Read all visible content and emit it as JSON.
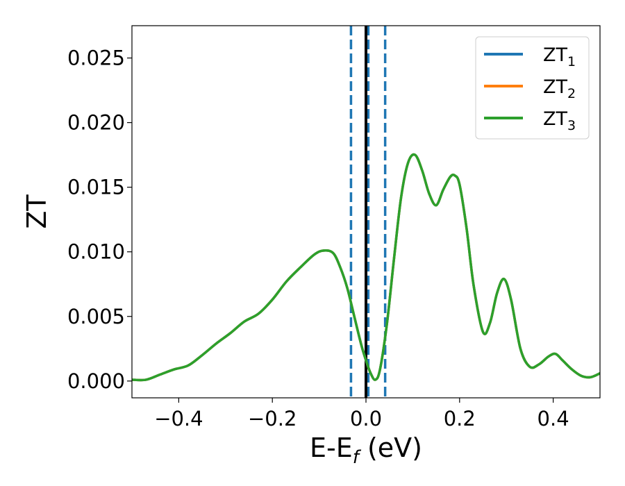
{
  "chart_data": {
    "type": "line",
    "xlabel": "E-E",
    "xlabel_sub": "f",
    "xlabel_unit": " (eV)",
    "ylabel": "ZT",
    "xlim": [
      -0.5,
      0.5
    ],
    "ylim": [
      -0.0013,
      0.0275
    ],
    "x_ticks": [
      -0.4,
      -0.2,
      0.0,
      0.2,
      0.4
    ],
    "x_tick_labels": [
      "−0.4",
      "−0.2",
      "0.0",
      "0.2",
      "0.4"
    ],
    "y_ticks": [
      0.0,
      0.005,
      0.01,
      0.015,
      0.02,
      0.025
    ],
    "y_tick_labels": [
      "0.000",
      "0.005",
      "0.010",
      "0.015",
      "0.020",
      "0.025"
    ],
    "grid": false,
    "legend_position": "top-right",
    "vlines": [
      {
        "x": -0.032,
        "style": "dashed",
        "color": "#1f77b4"
      },
      {
        "x": 0.005,
        "style": "dashed",
        "color": "#1f77b4"
      },
      {
        "x": 0.041,
        "style": "dashed",
        "color": "#1f77b4"
      },
      {
        "x": 0.0,
        "style": "solid",
        "color": "#000000"
      }
    ],
    "x": [
      -0.5,
      -0.47,
      -0.44,
      -0.41,
      -0.38,
      -0.35,
      -0.32,
      -0.29,
      -0.26,
      -0.23,
      -0.2,
      -0.17,
      -0.14,
      -0.11,
      -0.09,
      -0.07,
      -0.055,
      -0.04,
      -0.025,
      -0.01,
      0.0,
      0.01,
      0.02,
      0.03,
      0.045,
      0.06,
      0.075,
      0.09,
      0.105,
      0.12,
      0.135,
      0.15,
      0.165,
      0.18,
      0.19,
      0.2,
      0.215,
      0.23,
      0.25,
      0.265,
      0.28,
      0.295,
      0.31,
      0.33,
      0.35,
      0.37,
      0.39,
      0.405,
      0.42,
      0.44,
      0.46,
      0.48,
      0.5
    ],
    "series": [
      {
        "name": "ZT",
        "name_sub": "1",
        "color": "#1f77b4",
        "values": [
          0.0001,
          0.0001,
          0.0005,
          0.0009,
          0.0012,
          0.002,
          0.0029,
          0.0037,
          0.0046,
          0.0052,
          0.0063,
          0.0077,
          0.0088,
          0.0098,
          0.0101,
          0.0099,
          0.0088,
          0.0072,
          0.005,
          0.0028,
          0.0016,
          0.0006,
          0.0001,
          0.0009,
          0.0045,
          0.0095,
          0.0142,
          0.0169,
          0.0175,
          0.0163,
          0.0145,
          0.0136,
          0.0148,
          0.0158,
          0.0159,
          0.0152,
          0.0118,
          0.0074,
          0.0038,
          0.0045,
          0.0068,
          0.0079,
          0.0063,
          0.0025,
          0.0011,
          0.0013,
          0.0019,
          0.0021,
          0.0016,
          0.0009,
          0.0004,
          0.0003,
          0.0006
        ]
      },
      {
        "name": "ZT",
        "name_sub": "2",
        "color": "#ff7f0e",
        "values": [
          0.0001,
          0.0001,
          0.0005,
          0.0009,
          0.0012,
          0.002,
          0.0029,
          0.0037,
          0.0046,
          0.0052,
          0.0063,
          0.0077,
          0.0088,
          0.0098,
          0.0101,
          0.0099,
          0.0088,
          0.0072,
          0.005,
          0.0028,
          0.0016,
          0.0006,
          0.0001,
          0.0009,
          0.0045,
          0.0095,
          0.0142,
          0.0169,
          0.0175,
          0.0163,
          0.0145,
          0.0136,
          0.0148,
          0.0158,
          0.0159,
          0.0152,
          0.0118,
          0.0074,
          0.0038,
          0.0045,
          0.0068,
          0.0079,
          0.0063,
          0.0025,
          0.0011,
          0.0013,
          0.0019,
          0.0021,
          0.0016,
          0.0009,
          0.0004,
          0.0003,
          0.0006
        ]
      },
      {
        "name": "ZT",
        "name_sub": "3",
        "color": "#2ca02c",
        "values": [
          0.0001,
          0.0001,
          0.0005,
          0.0009,
          0.0012,
          0.002,
          0.0029,
          0.0037,
          0.0046,
          0.0052,
          0.0063,
          0.0077,
          0.0088,
          0.0098,
          0.0101,
          0.0099,
          0.0088,
          0.0072,
          0.005,
          0.0028,
          0.0016,
          0.0006,
          0.0001,
          0.0009,
          0.0045,
          0.0095,
          0.0142,
          0.0169,
          0.0175,
          0.0163,
          0.0145,
          0.0136,
          0.0148,
          0.0158,
          0.0159,
          0.0152,
          0.0118,
          0.0074,
          0.0038,
          0.0045,
          0.0068,
          0.0079,
          0.0063,
          0.0025,
          0.0011,
          0.0013,
          0.0019,
          0.0021,
          0.0016,
          0.0009,
          0.0004,
          0.0003,
          0.0006
        ]
      }
    ]
  }
}
